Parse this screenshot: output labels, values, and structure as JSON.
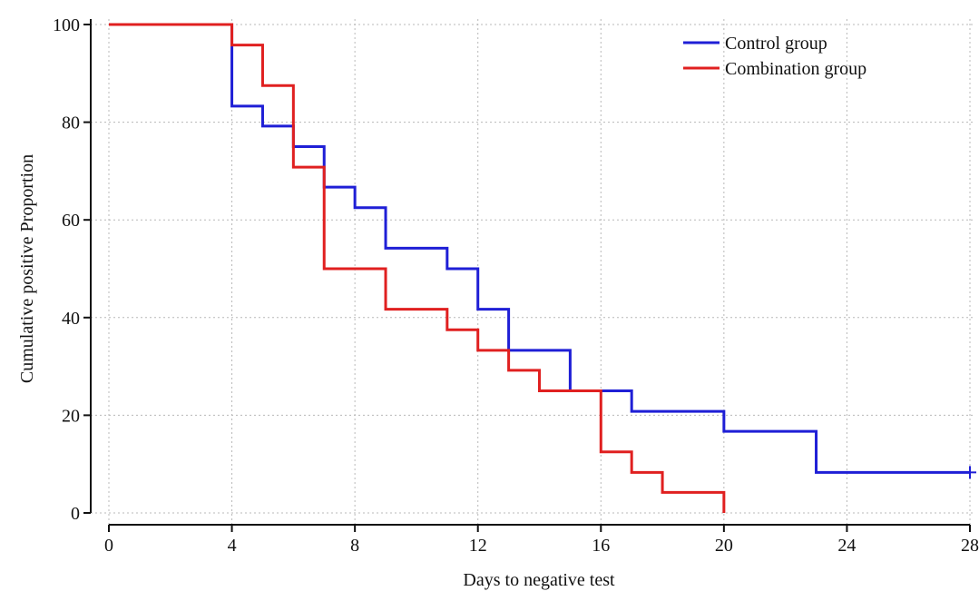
{
  "chart_data": {
    "type": "line",
    "step": true,
    "xlabel": "Days to negative test",
    "ylabel": "Cumulative positive Proportion",
    "xlim": [
      0,
      28
    ],
    "ylim": [
      0,
      100
    ],
    "xticks": [
      0,
      4,
      8,
      12,
      16,
      20,
      24,
      28
    ],
    "yticks": [
      0,
      20,
      40,
      60,
      80,
      100
    ],
    "grid": true,
    "legend_position": "top-right",
    "series": [
      {
        "name": "Control group",
        "color": "#1f1fd6",
        "censored_at": [
          28
        ],
        "points": [
          [
            0,
            100
          ],
          [
            4,
            83.3
          ],
          [
            5,
            79.2
          ],
          [
            6,
            75
          ],
          [
            7,
            66.7
          ],
          [
            8,
            62.5
          ],
          [
            9,
            54.2
          ],
          [
            11,
            50
          ],
          [
            12,
            41.7
          ],
          [
            13,
            33.3
          ],
          [
            15,
            25
          ],
          [
            17,
            20.8
          ],
          [
            20,
            16.7
          ],
          [
            23,
            8.3
          ],
          [
            28,
            8.3
          ]
        ]
      },
      {
        "name": "Combination group",
        "color": "#e02020",
        "censored_at": [],
        "points": [
          [
            0,
            100
          ],
          [
            4,
            95.8
          ],
          [
            5,
            87.5
          ],
          [
            6,
            70.8
          ],
          [
            7,
            50
          ],
          [
            9,
            41.7
          ],
          [
            11,
            37.5
          ],
          [
            12,
            33.3
          ],
          [
            13,
            29.2
          ],
          [
            14,
            25
          ],
          [
            16,
            12.5
          ],
          [
            17,
            8.3
          ],
          [
            18,
            4.2
          ],
          [
            20,
            0
          ]
        ]
      }
    ]
  }
}
